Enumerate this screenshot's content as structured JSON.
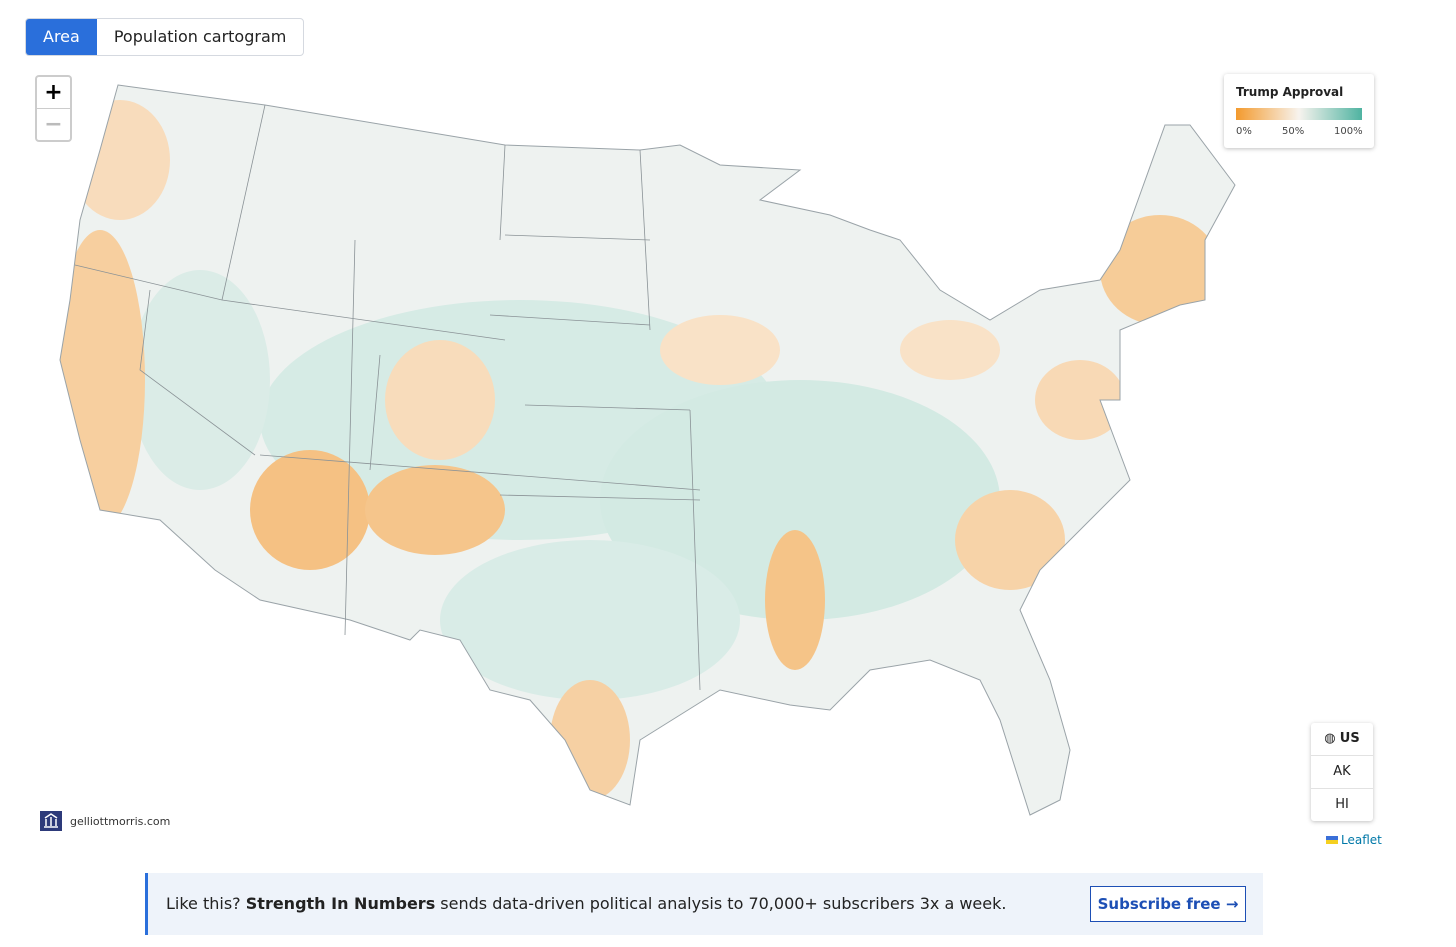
{
  "tabs": [
    "Area",
    "Population cartogram"
  ],
  "zoom": {
    "in": "+",
    "out": "−"
  },
  "legend": {
    "title": "Trump Approval",
    "ticks": [
      "0%",
      "50%",
      "100%"
    ]
  },
  "regions": [
    "US",
    "AK",
    "HI"
  ],
  "attribution": "gelliottmorris.com",
  "leaflet": "Leaflet",
  "banner": {
    "lead": "Like this? ",
    "brand": "Strength In Numbers",
    "text": " sends data-driven political analysis to 70,000+ subscribers 3x a week.",
    "button": "Subscribe free →"
  }
}
